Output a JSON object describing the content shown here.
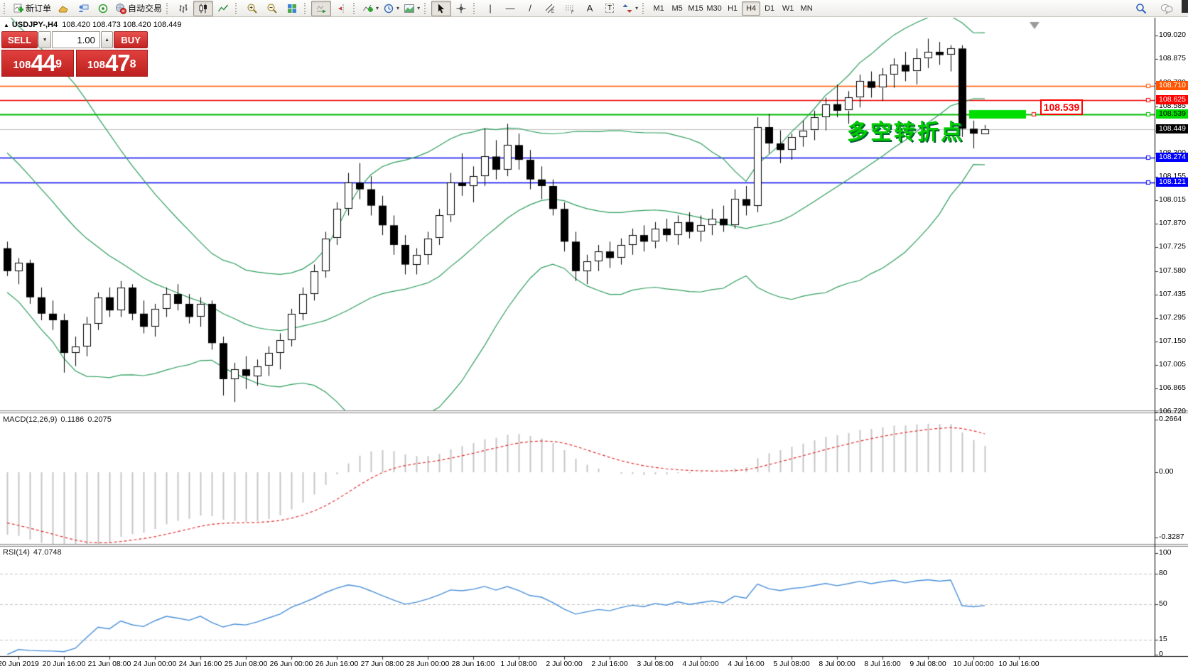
{
  "toolbar": {
    "new_order_label": "新订单",
    "autotrading_label": "自动交易",
    "text_tool_glyph": "A",
    "label_tool_glyph": "T",
    "vline_glyph": "|",
    "hline_glyph": "—",
    "trend_glyph": "/",
    "caret_glyph": "▾",
    "timeframes": [
      "M1",
      "M5",
      "M15",
      "M30",
      "H1",
      "H4",
      "D1",
      "W1",
      "MN"
    ],
    "active_timeframe": "H4"
  },
  "one_click": {
    "sell_label": "SELL",
    "buy_label": "BUY",
    "volume": "1.00",
    "down_glyph": "▼",
    "up_glyph": "▲",
    "sell_price": {
      "prefix": "108",
      "big": "44",
      "sup": "9"
    },
    "buy_price": {
      "prefix": "108",
      "big": "47",
      "sup": "8"
    }
  },
  "chart_header": {
    "toggle_glyph": "▲",
    "symbol": "USDJPY-,H4",
    "ohlc": "108.420 108.473 108.420 108.449"
  },
  "annotation": {
    "text": "多空转折点",
    "color": "#00CC00"
  },
  "floating_price_label": "108.539",
  "indicators": {
    "macd": {
      "label": "MACD(12,26,9)",
      "value_main": "0.1186",
      "value_signal": "0.2075",
      "axis_ticks": [
        "0.2664",
        "0.00",
        "-0.3287"
      ]
    },
    "rsi": {
      "label": "RSI(14)",
      "value": "47.0748",
      "axis_ticks": [
        "100",
        "80",
        "50",
        "15",
        "0"
      ],
      "levels": [
        80,
        50,
        15
      ]
    }
  },
  "chart_data": {
    "type": "candlestick",
    "symbol": "USDJPY-",
    "timeframe": "H4",
    "ylim_main": [
      106.729,
      109.128
    ],
    "ylim_macd": [
      -0.3613,
      0.2975
    ],
    "ylim_rsi": [
      0,
      105
    ],
    "price_ticks": [
      "109.020",
      "108.875",
      "108.730",
      "108.585",
      "108.440",
      "108.300",
      "108.155",
      "108.015",
      "107.870",
      "107.725",
      "107.580",
      "107.435",
      "107.295",
      "107.150",
      "107.005",
      "106.865",
      "106.720"
    ],
    "time_labels": [
      "20 Jun 2019",
      "20 Jun 16:00",
      "21 Jun 08:00",
      "24 Jun 00:00",
      "24 Jun 16:00",
      "25 Jun 08:00",
      "26 Jun 00:00",
      "26 Jun 16:00",
      "27 Jun 08:00",
      "28 Jun 00:00",
      "28 Jun 16:00",
      "1 Jul 08:00",
      "2 Jul 00:00",
      "2 Jul 16:00",
      "3 Jul 08:00",
      "4 Jul 00:00",
      "4 Jul 16:00",
      "5 Jul 08:00",
      "8 Jul 00:00",
      "8 Jul 16:00",
      "9 Jul 08:00",
      "10 Jul 00:00",
      "10 Jul 16:00"
    ],
    "price_lines": [
      {
        "label": "108.710",
        "price": 108.71,
        "bg": "#FF5500",
        "text": "#ffffff",
        "line": "#FF5500",
        "width": 1.5,
        "handle": true
      },
      {
        "label": "108.625",
        "price": 108.625,
        "bg": "#FF0000",
        "text": "#ffffff",
        "line": "#EE0000",
        "width": 1.5,
        "handle": true
      },
      {
        "label": "108.539",
        "price": 108.539,
        "bg": "#00DD00",
        "text": "#000000",
        "line": "#00BB00",
        "width": 2,
        "handle": true
      },
      {
        "label": "108.449",
        "price": 108.449,
        "bg": "#000000",
        "text": "#ffffff",
        "line": "#C0C0C0",
        "width": 1,
        "handle": false
      },
      {
        "label": "108.274",
        "price": 108.274,
        "bg": "#0000FF",
        "text": "#ffffff",
        "line": "#0000EE",
        "width": 1.5,
        "handle": true
      },
      {
        "label": "108.121",
        "price": 108.121,
        "bg": "#0000FF",
        "text": "#ffffff",
        "line": "#0000EE",
        "width": 1.5,
        "handle": true
      }
    ],
    "objects": {
      "highlight_segment": {
        "price": 108.539,
        "color": "#00DD00"
      },
      "sell_marker": {
        "color": "#9a9a9a"
      }
    },
    "bollinger": {
      "period": 20,
      "deviation": 2,
      "color": "#2e9e5e"
    },
    "macd": {
      "fast": 12,
      "slow": 26,
      "signal": 9,
      "hist_color": "#C6C6C6",
      "signal_color": "#E03030"
    },
    "rsi": {
      "period": 14,
      "color": "#4a90d9",
      "level_color": "#c4c4c4"
    },
    "seed_closes": [
      109.0,
      108.97,
      108.93,
      108.88,
      108.82,
      108.74,
      108.66,
      108.57,
      108.48,
      108.4,
      108.32,
      108.24,
      108.16,
      108.08,
      108.0,
      107.94,
      107.88,
      107.84,
      107.8,
      107.76
    ],
    "candles": [
      [
        "20 Jun 00:00",
        107.72,
        107.76,
        107.55,
        107.58
      ],
      [
        "20 Jun 04:00",
        107.58,
        107.66,
        107.5,
        107.63
      ],
      [
        "20 Jun 08:00",
        107.63,
        107.65,
        107.38,
        107.42
      ],
      [
        "20 Jun 12:00",
        107.42,
        107.48,
        107.28,
        107.32
      ],
      [
        "20 Jun 16:00",
        107.32,
        107.4,
        107.22,
        107.28
      ],
      [
        "20 Jun 20:00",
        107.28,
        107.32,
        106.96,
        107.08
      ],
      [
        "21 Jun 00:00",
        107.08,
        107.18,
        107.0,
        107.12
      ],
      [
        "21 Jun 04:00",
        107.12,
        107.3,
        107.06,
        107.26
      ],
      [
        "21 Jun 08:00",
        107.26,
        107.45,
        107.22,
        107.42
      ],
      [
        "21 Jun 12:00",
        107.42,
        107.48,
        107.3,
        107.34
      ],
      [
        "21 Jun 16:00",
        107.34,
        107.52,
        107.3,
        107.48
      ],
      [
        "21 Jun 20:00",
        107.48,
        107.5,
        107.28,
        107.32
      ],
      [
        "24 Jun 00:00",
        107.32,
        107.4,
        107.2,
        107.24
      ],
      [
        "24 Jun 04:00",
        107.24,
        107.38,
        107.18,
        107.35
      ],
      [
        "24 Jun 08:00",
        107.35,
        107.48,
        107.3,
        107.44
      ],
      [
        "24 Jun 12:00",
        107.44,
        107.5,
        107.34,
        107.38
      ],
      [
        "24 Jun 16:00",
        107.38,
        107.44,
        107.26,
        107.3
      ],
      [
        "24 Jun 20:00",
        107.3,
        107.42,
        107.24,
        107.38
      ],
      [
        "25 Jun 00:00",
        107.38,
        107.4,
        107.1,
        107.14
      ],
      [
        "25 Jun 04:00",
        107.14,
        107.18,
        106.82,
        106.92
      ],
      [
        "25 Jun 08:00",
        106.92,
        107.02,
        106.78,
        106.98
      ],
      [
        "25 Jun 12:00",
        106.98,
        107.06,
        106.86,
        106.94
      ],
      [
        "25 Jun 16:00",
        106.94,
        107.04,
        106.88,
        107.0
      ],
      [
        "25 Jun 20:00",
        107.0,
        107.12,
        106.94,
        107.08
      ],
      [
        "26 Jun 00:00",
        107.08,
        107.2,
        106.98,
        107.16
      ],
      [
        "26 Jun 04:00",
        107.16,
        107.35,
        107.12,
        107.32
      ],
      [
        "26 Jun 08:00",
        107.32,
        107.48,
        107.28,
        107.44
      ],
      [
        "26 Jun 12:00",
        107.44,
        107.62,
        107.4,
        107.58
      ],
      [
        "26 Jun 16:00",
        107.58,
        107.82,
        107.54,
        107.78
      ],
      [
        "26 Jun 20:00",
        107.78,
        108.0,
        107.74,
        107.96
      ],
      [
        "27 Jun 00:00",
        107.96,
        108.18,
        107.92,
        108.12
      ],
      [
        "27 Jun 04:00",
        108.12,
        108.24,
        108.02,
        108.08
      ],
      [
        "27 Jun 08:00",
        108.08,
        108.16,
        107.92,
        107.98
      ],
      [
        "27 Jun 12:00",
        107.98,
        108.04,
        107.8,
        107.86
      ],
      [
        "27 Jun 16:00",
        107.86,
        107.92,
        107.68,
        107.74
      ],
      [
        "27 Jun 20:00",
        107.74,
        107.8,
        107.56,
        107.62
      ],
      [
        "28 Jun 00:00",
        107.62,
        107.72,
        107.56,
        107.68
      ],
      [
        "28 Jun 04:00",
        107.68,
        107.82,
        107.62,
        107.78
      ],
      [
        "28 Jun 08:00",
        107.78,
        107.96,
        107.74,
        107.92
      ],
      [
        "28 Jun 12:00",
        107.92,
        108.18,
        107.88,
        108.12
      ],
      [
        "28 Jun 16:00",
        108.12,
        108.3,
        108.04,
        108.1
      ],
      [
        "28 Jun 20:00",
        108.1,
        108.22,
        108.0,
        108.16
      ],
      [
        "1 Jul 00:00",
        108.16,
        108.45,
        108.1,
        108.28
      ],
      [
        "1 Jul 04:00",
        108.28,
        108.38,
        108.14,
        108.2
      ],
      [
        "1 Jul 08:00",
        108.2,
        108.48,
        108.16,
        108.35
      ],
      [
        "1 Jul 12:00",
        108.35,
        108.42,
        108.2,
        108.26
      ],
      [
        "1 Jul 16:00",
        108.26,
        108.32,
        108.08,
        108.14
      ],
      [
        "1 Jul 20:00",
        108.14,
        108.22,
        108.02,
        108.1
      ],
      [
        "2 Jul 00:00",
        108.1,
        108.14,
        107.92,
        107.96
      ],
      [
        "2 Jul 04:00",
        107.96,
        108.0,
        107.7,
        107.76
      ],
      [
        "2 Jul 08:00",
        107.76,
        107.82,
        107.52,
        107.58
      ],
      [
        "2 Jul 12:00",
        107.58,
        107.68,
        107.5,
        107.64
      ],
      [
        "2 Jul 16:00",
        107.64,
        107.74,
        107.58,
        107.7
      ],
      [
        "2 Jul 20:00",
        107.7,
        107.76,
        107.6,
        107.66
      ],
      [
        "3 Jul 00:00",
        107.66,
        107.78,
        107.62,
        107.74
      ],
      [
        "3 Jul 04:00",
        107.74,
        107.84,
        107.68,
        107.8
      ],
      [
        "3 Jul 08:00",
        107.8,
        107.86,
        107.7,
        107.76
      ],
      [
        "3 Jul 12:00",
        107.76,
        107.88,
        107.72,
        107.84
      ],
      [
        "3 Jul 16:00",
        107.84,
        107.9,
        107.76,
        107.8
      ],
      [
        "3 Jul 20:00",
        107.8,
        107.92,
        107.74,
        107.88
      ],
      [
        "4 Jul 00:00",
        107.88,
        107.94,
        107.78,
        107.82
      ],
      [
        "4 Jul 04:00",
        107.82,
        107.92,
        107.76,
        107.86
      ],
      [
        "4 Jul 08:00",
        107.86,
        107.96,
        107.8,
        107.9
      ],
      [
        "4 Jul 12:00",
        107.9,
        107.98,
        107.82,
        107.86
      ],
      [
        "4 Jul 16:00",
        107.86,
        108.08,
        107.84,
        108.02
      ],
      [
        "4 Jul 20:00",
        108.02,
        108.1,
        107.92,
        107.98
      ],
      [
        "5 Jul 00:00",
        107.98,
        108.52,
        107.94,
        108.46
      ],
      [
        "5 Jul 04:00",
        108.46,
        108.54,
        108.3,
        108.36
      ],
      [
        "5 Jul 08:00",
        108.36,
        108.44,
        108.24,
        108.32
      ],
      [
        "5 Jul 12:00",
        108.32,
        108.42,
        108.26,
        108.4
      ],
      [
        "5 Jul 16:00",
        108.4,
        108.5,
        108.34,
        108.44
      ],
      [
        "5 Jul 20:00",
        108.44,
        108.56,
        108.38,
        108.52
      ],
      [
        "8 Jul 00:00",
        108.52,
        108.64,
        108.44,
        108.6
      ],
      [
        "8 Jul 04:00",
        108.6,
        108.72,
        108.52,
        108.56
      ],
      [
        "8 Jul 08:00",
        108.56,
        108.68,
        108.48,
        108.64
      ],
      [
        "8 Jul 12:00",
        108.64,
        108.78,
        108.58,
        108.74
      ],
      [
        "8 Jul 16:00",
        108.74,
        108.8,
        108.64,
        108.7
      ],
      [
        "8 Jul 20:00",
        108.7,
        108.82,
        108.62,
        108.78
      ],
      [
        "9 Jul 00:00",
        108.78,
        108.88,
        108.7,
        108.84
      ],
      [
        "9 Jul 04:00",
        108.84,
        108.92,
        108.74,
        108.8
      ],
      [
        "9 Jul 08:00",
        108.8,
        108.94,
        108.72,
        108.88
      ],
      [
        "9 Jul 12:00",
        108.88,
        109.0,
        108.82,
        108.92
      ],
      [
        "9 Jul 16:00",
        108.92,
        108.98,
        108.84,
        108.9
      ],
      [
        "9 Jul 20:00",
        108.9,
        108.96,
        108.8,
        108.94
      ],
      [
        "10 Jul 00:00",
        108.94,
        108.96,
        108.4,
        108.45
      ],
      [
        "10 Jul 04:00",
        108.45,
        108.5,
        108.33,
        108.42
      ],
      [
        "10 Jul 08:00",
        108.42,
        108.473,
        108.42,
        108.449
      ]
    ]
  }
}
